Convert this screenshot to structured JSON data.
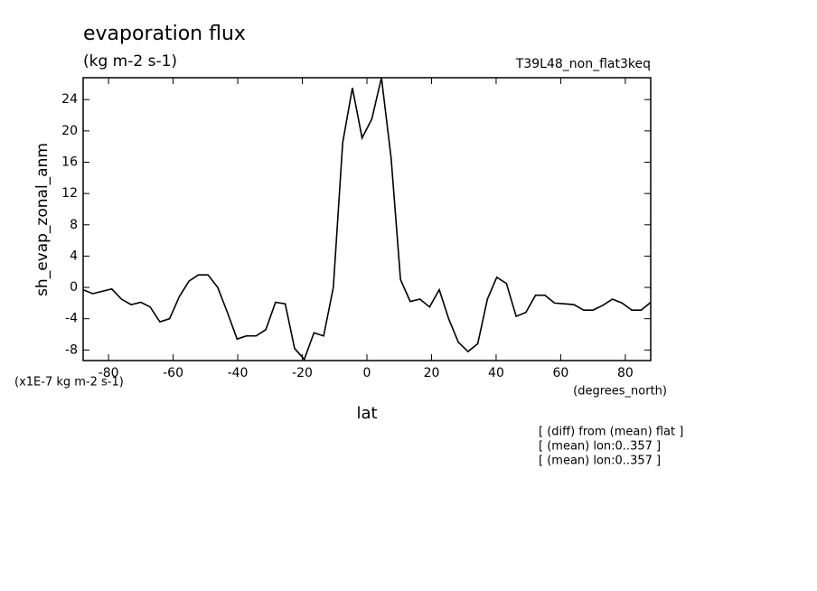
{
  "chart_data": {
    "type": "line",
    "title": "evaporation flux",
    "subtitle": "(kg m-2 s-1)",
    "experiment": "T39L48_non_flat3keq",
    "ylabel": "sh_evap_zonal_anm",
    "yunits": "(x1E-7 kg m-2 s-1)",
    "xlabel": "lat",
    "xunits": "(degrees_north)",
    "notes": [
      "[ (diff) from (mean) flat ]",
      "[ (mean) lon:0..357 ]",
      "[ (mean) lon:0..357 ]"
    ],
    "xlim": [
      -87.86,
      87.86
    ],
    "ylim": [
      -9.35,
      26.8
    ],
    "xticks": [
      -80,
      -60,
      -40,
      -20,
      0,
      20,
      40,
      60,
      80
    ],
    "yticks": [
      -8,
      -4,
      0,
      4,
      8,
      12,
      16,
      20,
      24
    ],
    "series": [
      {
        "color": "#000000",
        "x": [
          -87.9,
          -84.9,
          -82.0,
          -79.0,
          -76.0,
          -73.0,
          -70.0,
          -67.1,
          -64.1,
          -61.1,
          -58.1,
          -55.1,
          -52.2,
          -49.2,
          -46.2,
          -43.2,
          -40.2,
          -37.3,
          -34.3,
          -31.3,
          -28.3,
          -25.3,
          -22.4,
          -19.4,
          -16.4,
          -13.4,
          -10.4,
          -7.5,
          -4.5,
          -1.5,
          1.5,
          4.5,
          7.5,
          10.4,
          13.4,
          16.4,
          19.4,
          22.4,
          25.3,
          28.3,
          31.3,
          34.3,
          37.3,
          40.2,
          43.2,
          46.2,
          49.2,
          52.2,
          55.1,
          58.1,
          61.1,
          64.1,
          67.1,
          70.0,
          73.0,
          76.0,
          79.0,
          82.0,
          84.9,
          87.9
        ],
        "values": [
          -0.3,
          -0.8,
          -0.5,
          -0.2,
          -1.5,
          -2.2,
          -1.9,
          -2.5,
          -4.4,
          -4.0,
          -1.2,
          0.8,
          1.6,
          1.6,
          0,
          -3.2,
          -6.6,
          -6.2,
          -6.2,
          -5.4,
          -1.9,
          -2.1,
          -7.8,
          -9.2,
          -5.8,
          -6.2,
          0,
          18.5,
          25.5,
          19.1,
          21.5,
          26.8,
          16.5,
          1,
          -1.8,
          -1.5,
          -2.5,
          -0.3,
          -4,
          -7,
          -8.2,
          -7.2,
          -1.5,
          1.3,
          0.5,
          -3.7,
          -3.2,
          -1,
          -1,
          -2,
          -2.1,
          -2.2,
          -2.9,
          -2.9,
          -2.3,
          -1.5,
          -2.0,
          -2.9,
          -2.9,
          -1.9
        ]
      }
    ]
  }
}
